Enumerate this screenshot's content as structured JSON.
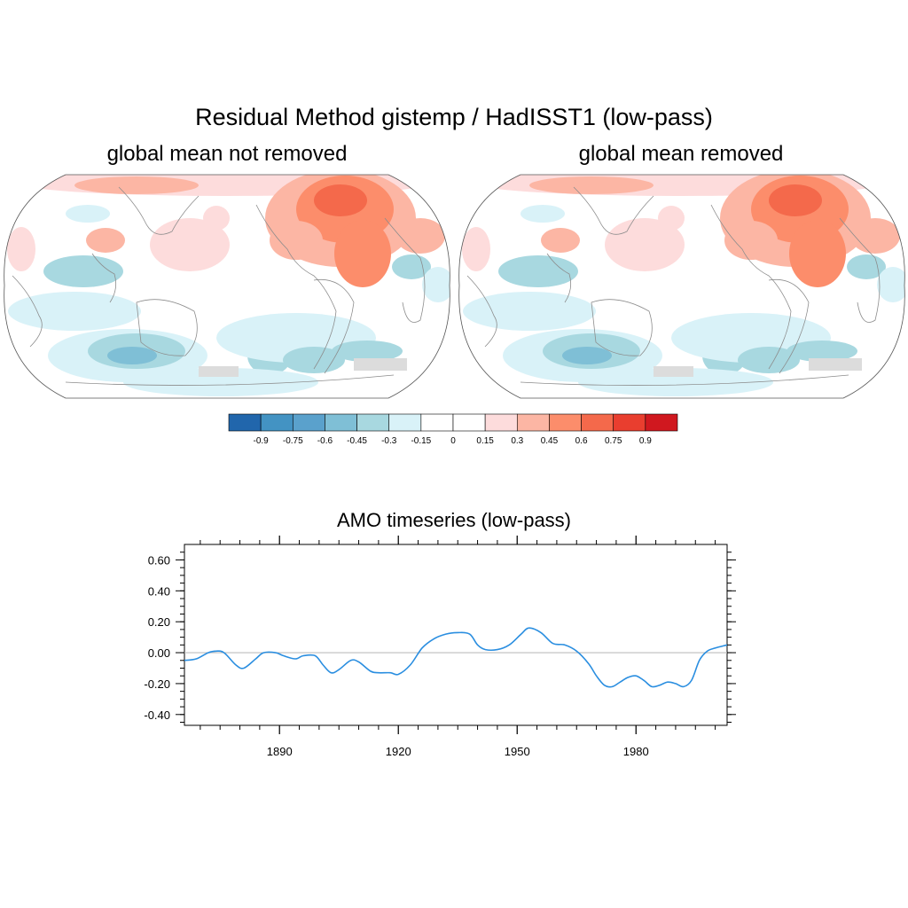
{
  "figure": {
    "title": "Residual Method  gistemp  / HadISST1  (low-pass)",
    "map_left_title": "global mean not removed",
    "map_right_title": "global mean removed"
  },
  "colors": {
    "ocean_background": "#ffffff",
    "coast": "#8c8c8c",
    "land_mask": "#dcdcdc",
    "series_line": "#2a8ee0",
    "zero_line": "#bdbdbd"
  },
  "colorbar": {
    "levels": [
      "-0.9",
      "-0.75",
      "-0.6",
      "-0.45",
      "-0.3",
      "-0.15",
      "0",
      "0.15",
      "0.3",
      "0.45",
      "0.6",
      "0.75",
      "0.9"
    ],
    "colors": [
      "#2166ac",
      "#4393c3",
      "#5aa1cc",
      "#7fbfd6",
      "#a8d8e0",
      "#d9f2f8",
      "#ffffff",
      "#ffffff",
      "#fddcdc",
      "#fcb6a4",
      "#fc8d6b",
      "#f4694b",
      "#e93e2f",
      "#d0181f"
    ]
  },
  "chart_data": {
    "type": "line",
    "title": "AMO timeseries (low-pass)",
    "xlabel": "",
    "ylabel": "",
    "xlim": [
      1866,
      2003
    ],
    "ylim": [
      -0.47,
      0.7
    ],
    "x_ticks": [
      "1890",
      "1920",
      "1950",
      "1980"
    ],
    "x_tick_values": [
      1890,
      1920,
      1950,
      1980
    ],
    "y_ticks": [
      "0.60",
      "0.40",
      "0.20",
      "0.00",
      "-0.20",
      "-0.40"
    ],
    "y_tick_values": [
      0.6,
      0.4,
      0.2,
      0.0,
      -0.2,
      -0.4
    ],
    "series": [
      {
        "x": [
          1866,
          1869,
          1872,
          1874,
          1876,
          1879,
          1881,
          1884,
          1886,
          1889,
          1891,
          1894,
          1896,
          1899,
          1901,
          1903,
          1905,
          1908,
          1910,
          1913,
          1915,
          1918,
          1920,
          1923,
          1926,
          1929,
          1932,
          1935,
          1938,
          1940,
          1942,
          1945,
          1948,
          1951,
          1953,
          1956,
          1959,
          1962,
          1965,
          1968,
          1970,
          1972,
          1974,
          1976,
          1978,
          1980,
          1982,
          1984,
          1986,
          1988,
          1990,
          1992,
          1994,
          1996,
          1998,
          2000,
          2003
        ],
        "y": [
          -0.05,
          -0.04,
          0.0,
          0.01,
          0.0,
          -0.08,
          -0.1,
          -0.04,
          0.0,
          0.0,
          -0.02,
          -0.04,
          -0.02,
          -0.02,
          -0.08,
          -0.13,
          -0.11,
          -0.05,
          -0.06,
          -0.12,
          -0.13,
          -0.13,
          -0.14,
          -0.08,
          0.03,
          0.09,
          0.12,
          0.13,
          0.12,
          0.05,
          0.02,
          0.02,
          0.05,
          0.12,
          0.16,
          0.13,
          0.06,
          0.05,
          0.01,
          -0.07,
          -0.15,
          -0.21,
          -0.22,
          -0.19,
          -0.16,
          -0.15,
          -0.18,
          -0.22,
          -0.21,
          -0.19,
          -0.2,
          -0.22,
          -0.18,
          -0.05,
          0.01,
          0.03,
          0.05
        ]
      }
    ]
  }
}
